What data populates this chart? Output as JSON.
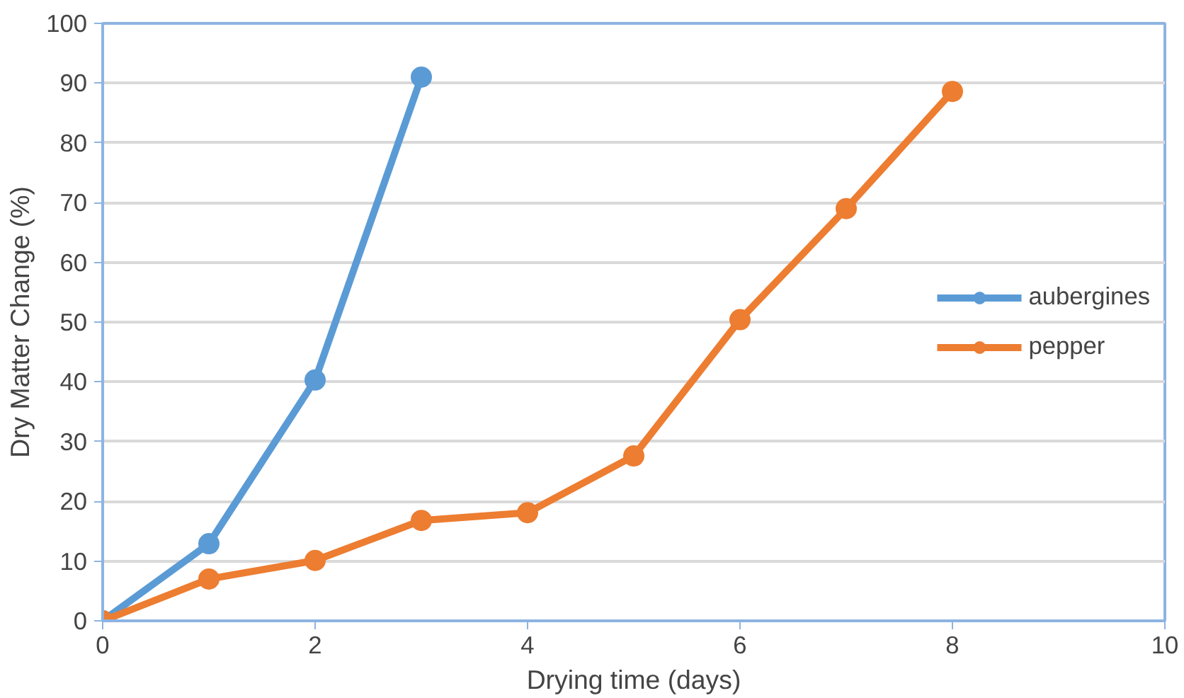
{
  "chart_data": {
    "type": "line",
    "xlabel": "Drying time (days)",
    "ylabel": "Dry Matter Change (%)",
    "xlim": [
      0,
      10
    ],
    "xticks": [
      0,
      2,
      4,
      6,
      8,
      10
    ],
    "ylim": [
      0,
      100
    ],
    "yticks": [
      0,
      10,
      20,
      30,
      40,
      50,
      60,
      70,
      80,
      90,
      100
    ],
    "grid": "y",
    "legend": "right",
    "marker": "circle",
    "line_style": "solid",
    "series": [
      {
        "name": "aubergines",
        "color": "#5b9bd5",
        "x": [
          0,
          1,
          2,
          3
        ],
        "values": [
          0,
          12.9,
          40.3,
          91
        ]
      },
      {
        "name": "pepper",
        "color": "#ed7d31",
        "x": [
          0,
          1,
          2,
          3,
          4,
          5,
          6,
          7,
          8
        ],
        "values": [
          0,
          7,
          10.1,
          16.8,
          18.1,
          27.6,
          50.4,
          69,
          88.6
        ]
      }
    ]
  }
}
